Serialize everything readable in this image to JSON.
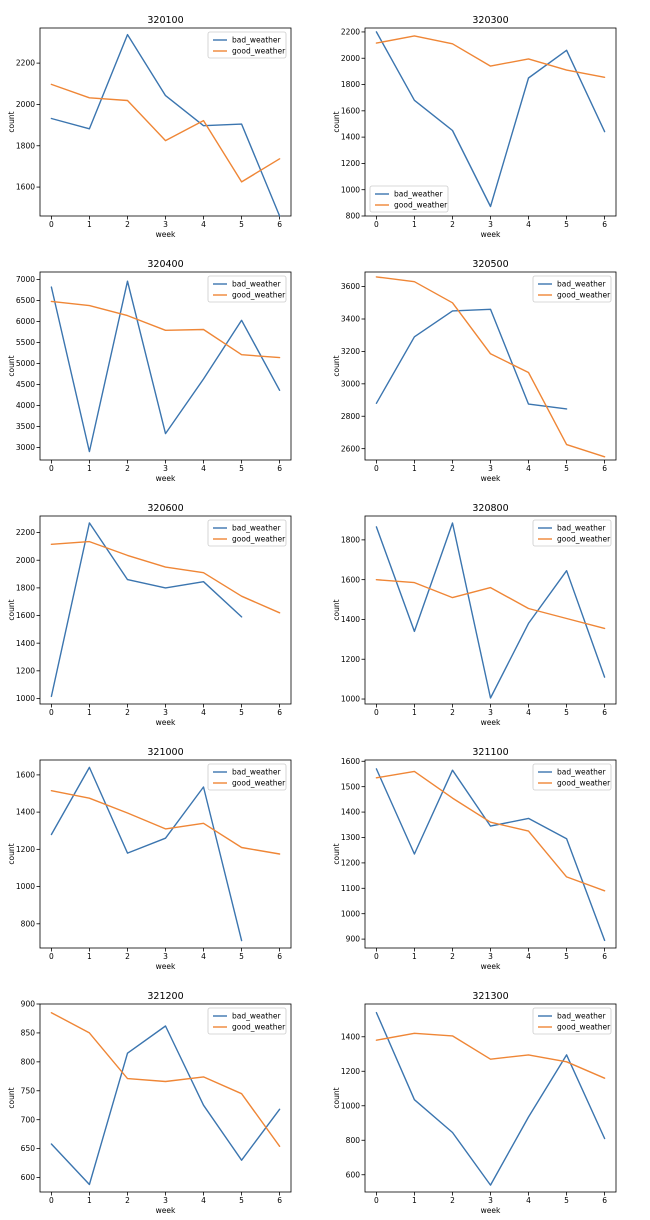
{
  "colors": {
    "bad_weather": "#3b75af",
    "good_weather": "#ef8636"
  },
  "chart_data": [
    {
      "type": "line",
      "title": "320100",
      "xlabel": "week",
      "ylabel": "count",
      "x": [
        0,
        1,
        2,
        3,
        4,
        5,
        6
      ],
      "ylim": [
        1460,
        2370
      ],
      "yticks": [
        1600,
        1800,
        2000,
        2200
      ],
      "legend": "top-right",
      "series": [
        {
          "name": "bad_weather",
          "values": [
            1932,
            1882,
            2338,
            2043,
            1897,
            1905,
            1460
          ]
        },
        {
          "name": "good_weather",
          "values": [
            2097,
            2032,
            2019,
            1825,
            1922,
            1625,
            1737
          ]
        }
      ]
    },
    {
      "type": "line",
      "title": "320300",
      "xlabel": "week",
      "ylabel": "count",
      "x": [
        0,
        1,
        2,
        3,
        4,
        5,
        6
      ],
      "ylim": [
        800,
        2230
      ],
      "yticks": [
        800,
        1000,
        1200,
        1400,
        1600,
        1800,
        2000,
        2200
      ],
      "legend": "bottom-left",
      "series": [
        {
          "name": "bad_weather",
          "values": [
            2200,
            1680,
            1450,
            872,
            1850,
            2060,
            1442
          ]
        },
        {
          "name": "good_weather",
          "values": [
            2115,
            2170,
            2110,
            1940,
            1995,
            1910,
            1855
          ]
        }
      ]
    },
    {
      "type": "line",
      "title": "320400",
      "xlabel": "week",
      "ylabel": "count",
      "x": [
        0,
        1,
        2,
        3,
        4,
        5,
        6
      ],
      "ylim": [
        2700,
        7180
      ],
      "yticks": [
        3000,
        3500,
        4000,
        4500,
        5000,
        5500,
        6000,
        6500,
        7000
      ],
      "legend": "top-right",
      "series": [
        {
          "name": "bad_weather",
          "values": [
            6820,
            2900,
            6960,
            3330,
            4630,
            6030,
            4360
          ]
        },
        {
          "name": "good_weather",
          "values": [
            6480,
            6380,
            6140,
            5790,
            5810,
            5210,
            5140
          ]
        }
      ]
    },
    {
      "type": "line",
      "title": "320500",
      "xlabel": "week",
      "ylabel": "count",
      "x": [
        0,
        1,
        2,
        3,
        4,
        5,
        6
      ],
      "ylim": [
        2530,
        3690
      ],
      "yticks": [
        2600,
        2800,
        3000,
        3200,
        3400,
        3600
      ],
      "legend": "top-right",
      "series": [
        {
          "name": "bad_weather",
          "values": [
            2880,
            3290,
            3450,
            3460,
            2875,
            2845,
            null
          ]
        },
        {
          "name": "good_weather",
          "values": [
            3660,
            3630,
            3500,
            3185,
            3070,
            2625,
            2550
          ]
        }
      ]
    },
    {
      "type": "line",
      "title": "320600",
      "xlabel": "week",
      "ylabel": "count",
      "x": [
        0,
        1,
        2,
        3,
        4,
        5,
        6
      ],
      "ylim": [
        960,
        2320
      ],
      "yticks": [
        1000,
        1200,
        1400,
        1600,
        1800,
        2000,
        2200
      ],
      "legend": "top-right",
      "series": [
        {
          "name": "bad_weather",
          "values": [
            1015,
            2270,
            1860,
            1800,
            1845,
            1590,
            null
          ]
        },
        {
          "name": "good_weather",
          "values": [
            2115,
            2135,
            2035,
            1950,
            1910,
            1740,
            1620
          ]
        }
      ]
    },
    {
      "type": "line",
      "title": "320800",
      "xlabel": "week",
      "ylabel": "count",
      "x": [
        0,
        1,
        2,
        3,
        4,
        5,
        6
      ],
      "ylim": [
        975,
        1920
      ],
      "yticks": [
        1000,
        1200,
        1400,
        1600,
        1800
      ],
      "legend": "top-right",
      "series": [
        {
          "name": "bad_weather",
          "values": [
            1865,
            1340,
            1885,
            1005,
            1380,
            1645,
            1110
          ]
        },
        {
          "name": "good_weather",
          "values": [
            1600,
            1585,
            1510,
            1560,
            1455,
            1405,
            1355
          ]
        }
      ]
    },
    {
      "type": "line",
      "title": "321000",
      "xlabel": "week",
      "ylabel": "count",
      "x": [
        0,
        1,
        2,
        3,
        4,
        5,
        6
      ],
      "ylim": [
        670,
        1680
      ],
      "yticks": [
        800,
        1000,
        1200,
        1400,
        1600
      ],
      "legend": "top-right",
      "series": [
        {
          "name": "bad_weather",
          "values": [
            1280,
            1640,
            1180,
            1260,
            1535,
            710,
            null
          ]
        },
        {
          "name": "good_weather",
          "values": [
            1515,
            1475,
            1395,
            1310,
            1340,
            1210,
            1175
          ]
        }
      ]
    },
    {
      "type": "line",
      "title": "321100",
      "xlabel": "week",
      "ylabel": "count",
      "x": [
        0,
        1,
        2,
        3,
        4,
        5,
        6
      ],
      "ylim": [
        865,
        1605
      ],
      "yticks": [
        900,
        1000,
        1100,
        1200,
        1300,
        1400,
        1500,
        1600
      ],
      "legend": "top-right",
      "series": [
        {
          "name": "bad_weather",
          "values": [
            1570,
            1235,
            1565,
            1345,
            1375,
            1295,
            895
          ]
        },
        {
          "name": "good_weather",
          "values": [
            1535,
            1560,
            1455,
            1360,
            1325,
            1145,
            1090
          ]
        }
      ]
    },
    {
      "type": "line",
      "title": "321200",
      "xlabel": "week",
      "ylabel": "count",
      "x": [
        0,
        1,
        2,
        3,
        4,
        5,
        6
      ],
      "ylim": [
        575,
        900
      ],
      "yticks": [
        600,
        650,
        700,
        750,
        800,
        850,
        900
      ],
      "legend": "top-right",
      "series": [
        {
          "name": "bad_weather",
          "values": [
            658,
            588,
            815,
            862,
            725,
            630,
            718
          ]
        },
        {
          "name": "good_weather",
          "values": [
            885,
            850,
            771,
            766,
            774,
            745,
            654
          ]
        }
      ]
    },
    {
      "type": "line",
      "title": "321300",
      "xlabel": "week",
      "ylabel": "count",
      "x": [
        0,
        1,
        2,
        3,
        4,
        5,
        6
      ],
      "ylim": [
        500,
        1590
      ],
      "yticks": [
        600,
        800,
        1000,
        1200,
        1400
      ],
      "legend": "top-right",
      "series": [
        {
          "name": "bad_weather",
          "values": [
            1540,
            1035,
            845,
            540,
            935,
            1295,
            810
          ]
        },
        {
          "name": "good_weather",
          "values": [
            1380,
            1420,
            1405,
            1270,
            1295,
            1255,
            1160
          ]
        }
      ]
    }
  ]
}
